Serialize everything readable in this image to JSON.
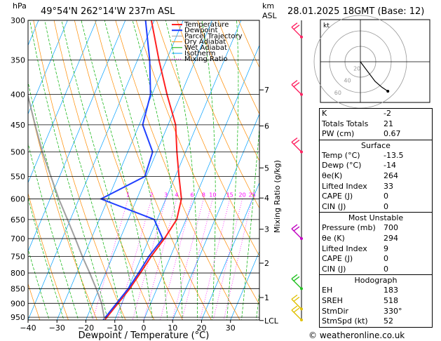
{
  "header": {
    "pressure_unit": "hPa",
    "location": "49°54'N 262°14'W 237m ASL",
    "km_unit": "km",
    "asl_unit": "ASL",
    "datetime": "28.01.2025 18GMT (Base: 12)"
  },
  "chart_data": {
    "type": "line",
    "title": "",
    "xlabel": "Dewpoint / Temperature (°C)",
    "ylabel": "hPa",
    "mixing_ratio_axis_label": "Mixing Ratio (g/kg)",
    "xlim": [
      -40,
      40
    ],
    "ylim": [
      960,
      300
    ],
    "x_ticks": [
      -40,
      -30,
      -20,
      -10,
      0,
      10,
      20,
      30
    ],
    "pressure_ticks": [
      300,
      350,
      400,
      450,
      500,
      550,
      600,
      650,
      700,
      750,
      800,
      850,
      900,
      950
    ],
    "km_ticks": [
      {
        "label": "7",
        "p": 393
      },
      {
        "label": "6",
        "p": 452
      },
      {
        "label": "5",
        "p": 532
      },
      {
        "label": "4",
        "p": 598
      },
      {
        "label": "3",
        "p": 675
      },
      {
        "label": "2",
        "p": 770
      },
      {
        "label": "1",
        "p": 880
      },
      {
        "label": "LCL",
        "p": 962
      }
    ],
    "mixing_ratio_labels": [
      {
        "label": "1",
        "w": 1
      },
      {
        "label": "2",
        "w": 2
      },
      {
        "label": "3",
        "w": 3
      },
      {
        "label": "4",
        "w": 4
      },
      {
        "label": "6",
        "w": 6
      },
      {
        "label": "8",
        "w": 8
      },
      {
        "label": "10",
        "w": 10
      },
      {
        "label": "15",
        "w": 15
      },
      {
        "label": "20",
        "w": 20
      },
      {
        "label": "25",
        "w": 25
      }
    ],
    "legend": [
      {
        "name": "Temperature",
        "color": "#ff2020",
        "style": "solid"
      },
      {
        "name": "Dewpoint",
        "color": "#2040ff",
        "style": "solid"
      },
      {
        "name": "Parcel Trajectory",
        "color": "#a0a0a0",
        "style": "solid"
      },
      {
        "name": "Dry Adiabat",
        "color": "#ff8c00",
        "style": "solid"
      },
      {
        "name": "Wet Adiabat",
        "color": "#00b000",
        "style": "solid"
      },
      {
        "name": "Isotherm",
        "color": "#00a0ff",
        "style": "solid"
      },
      {
        "name": "Mixing Ratio",
        "color": "#ff00ff",
        "style": "dotted"
      }
    ],
    "legend_position": "top-right",
    "series": [
      {
        "name": "Temperature",
        "color": "#ff2020",
        "points": [
          [
            960,
            -13.5
          ],
          [
            900,
            -11.3
          ],
          [
            850,
            -9.4
          ],
          [
            800,
            -8
          ],
          [
            750,
            -6.7
          ],
          [
            700,
            -4.7
          ],
          [
            650,
            -3.2
          ],
          [
            600,
            -4.6
          ],
          [
            550,
            -8.7
          ],
          [
            500,
            -13
          ],
          [
            450,
            -17.4
          ],
          [
            400,
            -24.8
          ],
          [
            350,
            -32.6
          ],
          [
            300,
            -41
          ]
        ]
      },
      {
        "name": "Dewpoint",
        "color": "#2040ff",
        "points": [
          [
            960,
            -14
          ],
          [
            900,
            -11.8
          ],
          [
            850,
            -9.9
          ],
          [
            800,
            -8.6
          ],
          [
            750,
            -7.5
          ],
          [
            700,
            -5.3
          ],
          [
            650,
            -11
          ],
          [
            600,
            -32.4
          ],
          [
            550,
            -20.5
          ],
          [
            500,
            -21.4
          ],
          [
            450,
            -28.8
          ],
          [
            400,
            -30.5
          ],
          [
            350,
            -35.8
          ],
          [
            300,
            -43
          ]
        ]
      },
      {
        "name": "Parcel Trajectory",
        "color": "#a0a0a0",
        "points": [
          [
            960,
            -13.5
          ],
          [
            900,
            -17
          ],
          [
            850,
            -21
          ],
          [
            800,
            -25.5
          ],
          [
            750,
            -30.5
          ],
          [
            700,
            -35.5
          ],
          [
            650,
            -41
          ],
          [
            600,
            -47
          ],
          [
            550,
            -53
          ],
          [
            500,
            -59.5
          ],
          [
            450,
            -66
          ],
          [
            400,
            -73
          ],
          [
            350,
            -81
          ],
          [
            300,
            -90
          ]
        ]
      }
    ],
    "wind_barbs": [
      {
        "p": 320,
        "color": "#ff2060"
      },
      {
        "p": 400,
        "color": "#ff2060"
      },
      {
        "p": 500,
        "color": "#ff2060"
      },
      {
        "p": 700,
        "color": "#c000c0"
      },
      {
        "p": 850,
        "color": "#20c020"
      },
      {
        "p": 920,
        "color": "#e0c000"
      },
      {
        "p": 960,
        "color": "#e0c000"
      }
    ],
    "hodograph": {
      "unit_label": "kt",
      "ring_labels": [
        "20",
        "40",
        "60"
      ],
      "points": [
        [
          0,
          0
        ],
        [
          3,
          -4
        ],
        [
          9,
          -12
        ],
        [
          15,
          -20
        ],
        [
          22,
          -26
        ],
        [
          28,
          -30
        ]
      ]
    }
  },
  "indices": {
    "rows": [
      {
        "k": "K",
        "v": "-2"
      },
      {
        "k": "Totals Totals",
        "v": "21"
      },
      {
        "k": "PW (cm)",
        "v": "0.67"
      }
    ],
    "surface": {
      "title": "Surface",
      "rows": [
        {
          "k": "Temp (°C)",
          "v": "-13.5"
        },
        {
          "k": "Dewp (°C)",
          "v": "-14"
        },
        {
          "k": "θe(K)",
          "v": "264"
        },
        {
          "k": "Lifted Index",
          "v": "33"
        },
        {
          "k": "CAPE (J)",
          "v": "0"
        },
        {
          "k": "CIN (J)",
          "v": "0"
        }
      ]
    },
    "most_unstable": {
      "title": "Most Unstable",
      "rows": [
        {
          "k": "Pressure (mb)",
          "v": "700"
        },
        {
          "k": "θe (K)",
          "v": "294"
        },
        {
          "k": "Lifted Index",
          "v": "9"
        },
        {
          "k": "CAPE (J)",
          "v": "0"
        },
        {
          "k": "CIN (J)",
          "v": "0"
        }
      ]
    },
    "hodograph": {
      "title": "Hodograph",
      "rows": [
        {
          "k": "EH",
          "v": "183"
        },
        {
          "k": "SREH",
          "v": "518"
        },
        {
          "k": "StmDir",
          "v": "330°"
        },
        {
          "k": "StmSpd (kt)",
          "v": "52"
        }
      ]
    }
  },
  "copyright": "© weatheronline.co.uk"
}
